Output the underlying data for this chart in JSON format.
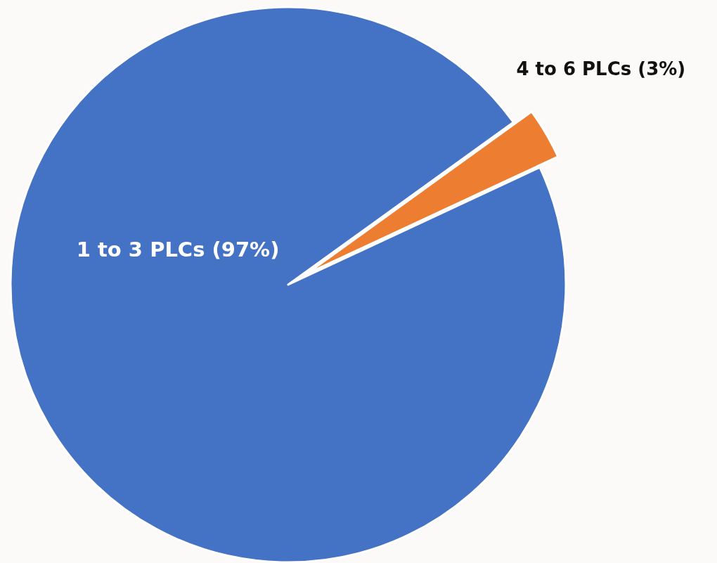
{
  "chart_data": {
    "type": "pie",
    "categories": [
      "1 to 3 PLCs (97%)",
      "4 to 6 PLCs (3%)"
    ],
    "values": [
      97,
      3
    ],
    "colors": [
      "#4472c4",
      "#ed7d31"
    ],
    "legend": false
  }
}
